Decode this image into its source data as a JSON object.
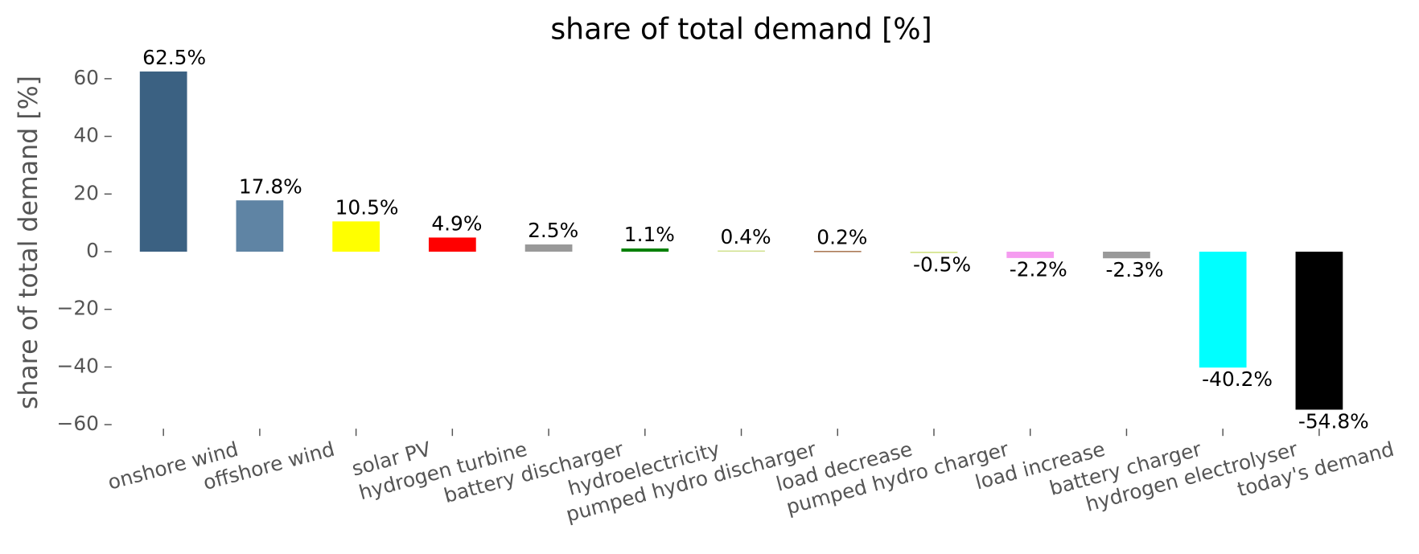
{
  "chart_data": {
    "type": "bar",
    "title": "share of total demand [%]",
    "y_label": "share of total demand [%]",
    "categories": [
      "onshore wind",
      "offshore wind",
      "solar PV",
      "hydrogen turbine",
      "battery discharger",
      "hydroelectricity",
      "pumped hydro discharger",
      "load decrease",
      "pumped hydro charger",
      "load increase",
      "battery charger",
      "hydrogen electrolyser",
      "today's demand"
    ],
    "values": [
      62.5,
      17.8,
      10.5,
      4.9,
      2.5,
      1.1,
      0.4,
      0.2,
      -0.5,
      -2.2,
      -2.3,
      -40.2,
      -54.8
    ],
    "value_labels": [
      "62.5%",
      "17.8%",
      "10.5%",
      "4.9%",
      "2.5%",
      "1.1%",
      "0.4%",
      "0.2%",
      "-0.5%",
      "-2.2%",
      "-2.3%",
      "-40.2%",
      "-54.8%"
    ],
    "colors": [
      "#3b6182",
      "#5f84a4",
      "#ffff00",
      "#ff0000",
      "#999999",
      "#008000",
      "#cfe08a",
      "#8b4513",
      "#d6e58f",
      "#f59cf0",
      "#999999",
      "#00ffff",
      "#000000"
    ],
    "ylim": [
      -63,
      66
    ],
    "yticks": [
      {
        "value": -60,
        "label": "−60"
      },
      {
        "value": -40,
        "label": "−40"
      },
      {
        "value": -20,
        "label": "−20"
      },
      0,
      20,
      40,
      60
    ]
  }
}
